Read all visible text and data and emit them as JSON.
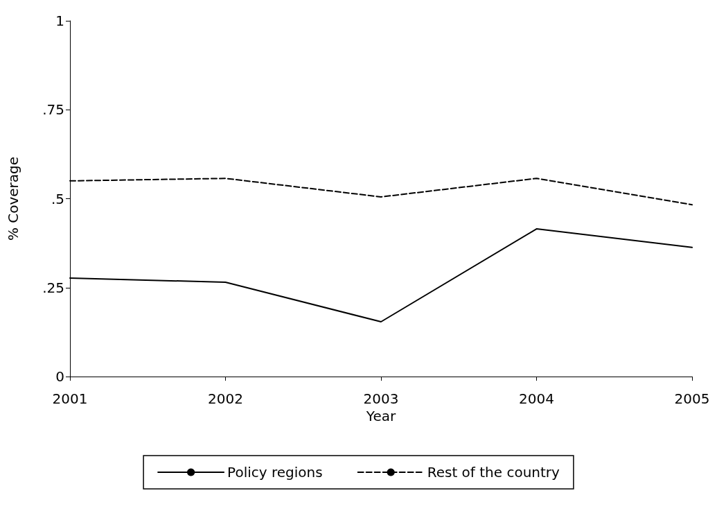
{
  "chart_data": {
    "type": "line",
    "xlabel": "Year",
    "ylabel": "% Coverage",
    "x": [
      2001,
      2002,
      2003,
      2004,
      2005
    ],
    "series": [
      {
        "name": "Policy regions",
        "color": "#000000",
        "line_style": "solid",
        "values": [
          0.277,
          0.265,
          0.154,
          0.415,
          0.363
        ]
      },
      {
        "name": "Rest of the country",
        "color": "#000000",
        "line_style": "dashed",
        "values": [
          0.55,
          0.557,
          0.505,
          0.557,
          0.483
        ]
      }
    ],
    "xlim": [
      2001,
      2005
    ],
    "xticks": [
      2001,
      2002,
      2003,
      2004,
      2005
    ],
    "ylim": [
      0,
      1
    ],
    "yticks": [
      {
        "value": 0,
        "label": "0"
      },
      {
        "value": 0.25,
        "label": ".25"
      },
      {
        "value": 0.5,
        "label": ".5"
      },
      {
        "value": 0.75,
        "label": ".75"
      },
      {
        "value": 1,
        "label": "1"
      }
    ],
    "grid": false,
    "legend": "bottom",
    "marker": "none"
  }
}
